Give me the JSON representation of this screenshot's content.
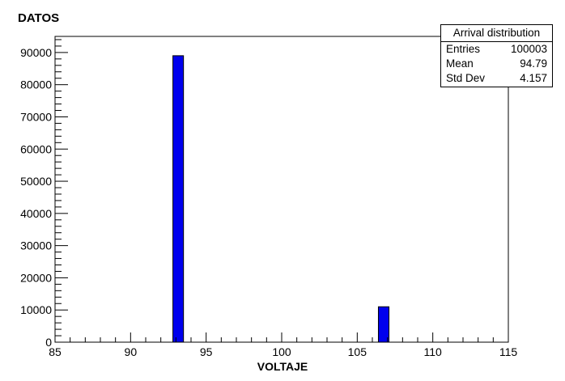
{
  "chart_data": {
    "type": "bar",
    "title": "DATOS",
    "xlabel": "VOLTAJE",
    "ylabel": "",
    "xlim": [
      85,
      115
    ],
    "ylim": [
      0,
      95000
    ],
    "xticks": [
      85,
      90,
      95,
      100,
      105,
      110,
      115
    ],
    "yticks": [
      0,
      10000,
      20000,
      30000,
      40000,
      50000,
      60000,
      70000,
      80000,
      90000
    ],
    "bar_color": "#0000ee",
    "bins": [
      {
        "x_low": 92.8,
        "x_high": 93.5,
        "count": 89000
      },
      {
        "x_low": 106.4,
        "x_high": 107.1,
        "count": 11000
      }
    ],
    "grid": false
  },
  "stats": {
    "title": "Arrival distribution",
    "rows": [
      {
        "label": "Entries",
        "value": "100003"
      },
      {
        "label": "Mean",
        "value": "94.79"
      },
      {
        "label": "Std Dev",
        "value": "4.157"
      }
    ]
  }
}
